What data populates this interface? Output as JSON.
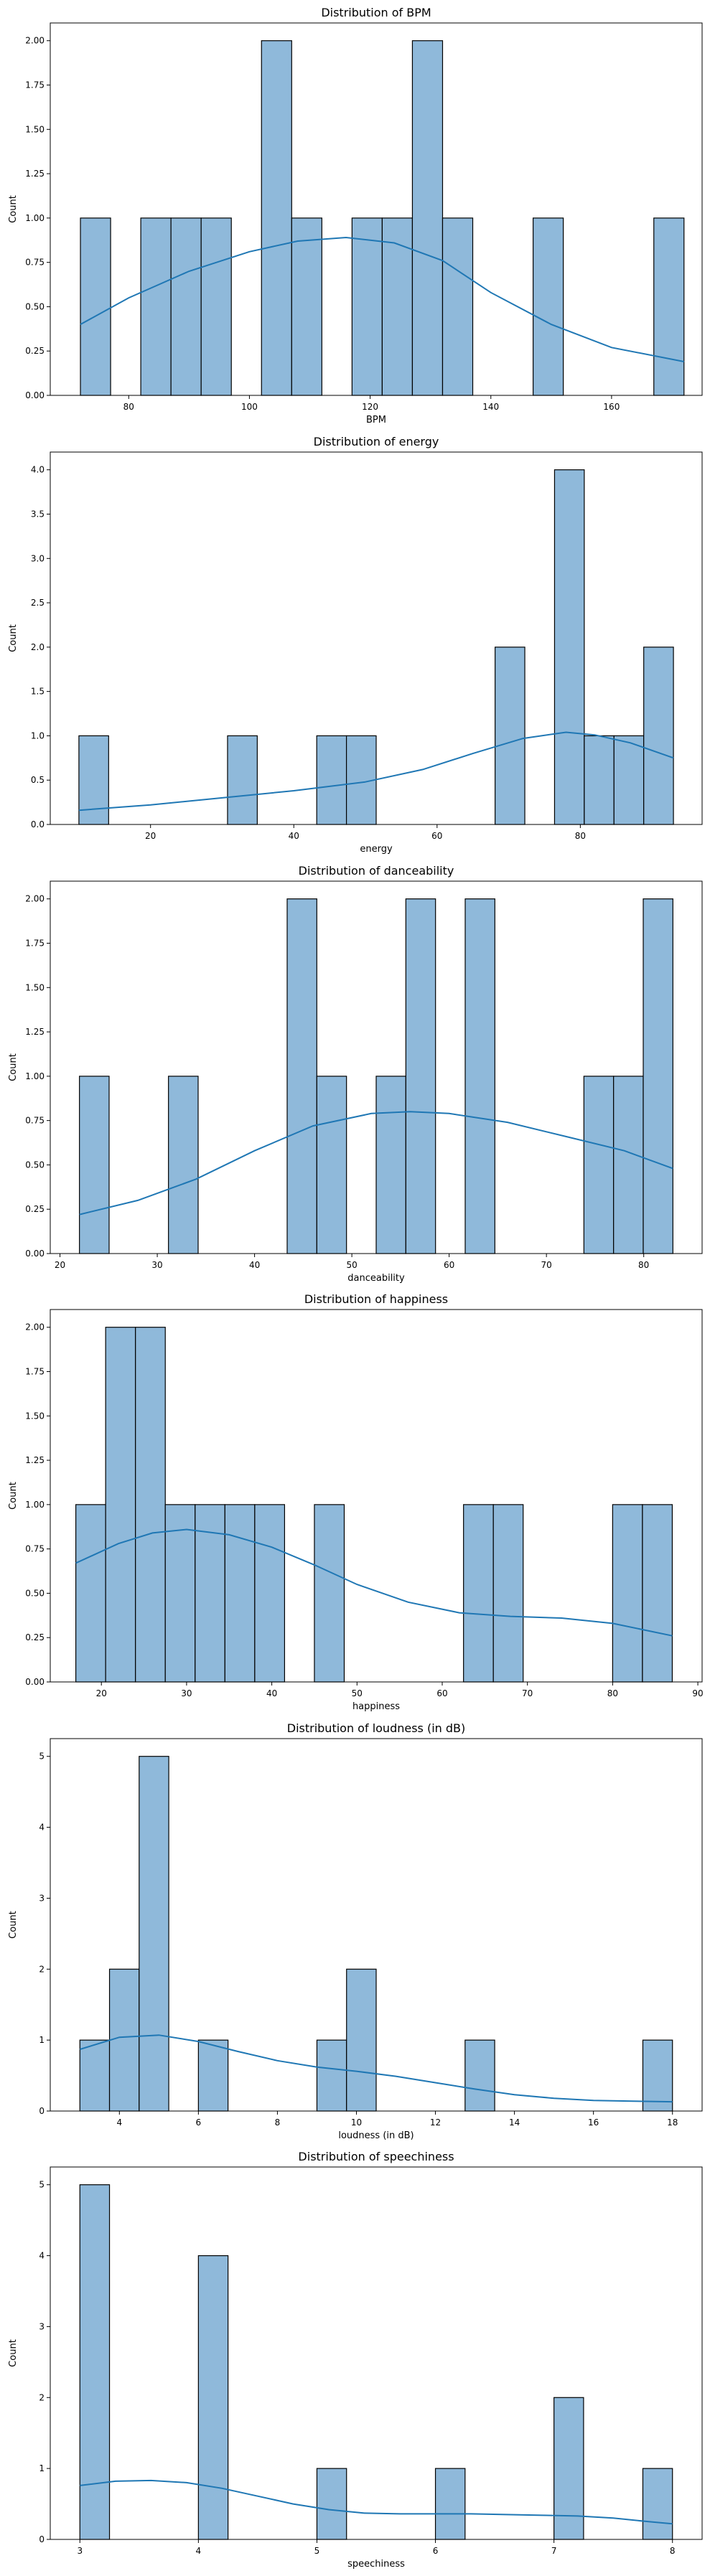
{
  "chart_data": [
    {
      "type": "bar",
      "title": "Distribution of BPM",
      "xlabel": "BPM",
      "ylabel": "Count",
      "xlim": [
        67,
        175
      ],
      "ylim": [
        0,
        2.1
      ],
      "xticks": [
        80,
        100,
        120,
        140,
        160
      ],
      "yticks": [
        0.0,
        0.25,
        0.5,
        0.75,
        1.0,
        1.25,
        1.5,
        1.75,
        2.0
      ],
      "ytick_decimals": 2,
      "bin_edges": [
        72,
        77,
        82,
        87,
        92,
        97,
        102,
        107,
        112,
        117,
        122,
        127,
        132,
        137,
        142,
        147,
        152,
        157,
        162,
        167,
        172
      ],
      "values": [
        1,
        0,
        1,
        1,
        1,
        0,
        2,
        1,
        0,
        1,
        1,
        2,
        1,
        0,
        0,
        1,
        0,
        0,
        0,
        1
      ],
      "kde": {
        "x": [
          72,
          80,
          90,
          100,
          108,
          116,
          124,
          132,
          140,
          150,
          160,
          172
        ],
        "y": [
          0.4,
          0.55,
          0.7,
          0.81,
          0.87,
          0.89,
          0.86,
          0.76,
          0.58,
          0.4,
          0.27,
          0.19
        ]
      },
      "legend": "none",
      "grid": false
    },
    {
      "type": "bar",
      "title": "Distribution of energy",
      "xlabel": "energy",
      "ylabel": "Count",
      "xlim": [
        6,
        97
      ],
      "ylim": [
        0,
        4.2
      ],
      "xticks": [
        20,
        40,
        60,
        80
      ],
      "yticks": [
        0.0,
        0.5,
        1.0,
        1.5,
        2.0,
        2.5,
        3.0,
        3.5,
        4.0
      ],
      "ytick_decimals": 1,
      "bin_edges": [
        10,
        14.15,
        18.3,
        22.45,
        26.6,
        30.75,
        34.9,
        39.05,
        43.2,
        47.35,
        51.5,
        55.65,
        59.8,
        63.95,
        68.1,
        72.25,
        76.4,
        80.55,
        84.7,
        88.85,
        93
      ],
      "values": [
        1,
        0,
        0,
        0,
        0,
        1,
        0,
        0,
        1,
        1,
        0,
        0,
        0,
        0,
        2,
        0,
        4,
        1,
        1,
        2
      ],
      "kde": {
        "x": [
          10,
          20,
          30,
          40,
          50,
          58,
          65,
          72,
          78,
          82,
          87,
          93
        ],
        "y": [
          0.16,
          0.22,
          0.3,
          0.38,
          0.48,
          0.62,
          0.8,
          0.97,
          1.04,
          1.01,
          0.92,
          0.75
        ]
      },
      "legend": "none",
      "grid": false
    },
    {
      "type": "bar",
      "title": "Distribution of danceability",
      "xlabel": "danceability",
      "ylabel": "Count",
      "xlim": [
        19,
        86
      ],
      "ylim": [
        0,
        2.1
      ],
      "xticks": [
        20,
        30,
        40,
        50,
        60,
        70,
        80
      ],
      "yticks": [
        0.0,
        0.25,
        0.5,
        0.75,
        1.0,
        1.25,
        1.5,
        1.75,
        2.0
      ],
      "ytick_decimals": 2,
      "bin_edges": [
        22,
        25.05,
        28.1,
        31.15,
        34.2,
        37.25,
        40.3,
        43.35,
        46.4,
        49.45,
        52.5,
        55.55,
        58.6,
        61.65,
        64.7,
        67.75,
        70.8,
        73.85,
        76.9,
        79.95,
        83
      ],
      "values": [
        1,
        0,
        0,
        1,
        0,
        0,
        0,
        2,
        1,
        0,
        1,
        2,
        0,
        2,
        0,
        0,
        0,
        1,
        1,
        2
      ],
      "kde": {
        "x": [
          22,
          28,
          34,
          40,
          46,
          52,
          56,
          60,
          66,
          72,
          78,
          83
        ],
        "y": [
          0.22,
          0.3,
          0.42,
          0.58,
          0.72,
          0.79,
          0.8,
          0.79,
          0.74,
          0.66,
          0.58,
          0.48
        ]
      },
      "legend": "none",
      "grid": false
    },
    {
      "type": "bar",
      "title": "Distribution of happiness",
      "xlabel": "happiness",
      "ylabel": "Count",
      "xlim": [
        14,
        90.5
      ],
      "ylim": [
        0,
        2.1
      ],
      "xticks": [
        20,
        30,
        40,
        50,
        60,
        70,
        80,
        90
      ],
      "yticks": [
        0.0,
        0.25,
        0.5,
        0.75,
        1.0,
        1.25,
        1.5,
        1.75,
        2.0
      ],
      "ytick_decimals": 2,
      "bin_edges": [
        17,
        20.5,
        24,
        27.5,
        31,
        34.5,
        38,
        41.5,
        45,
        48.5,
        52,
        55.5,
        59,
        62.5,
        66,
        69.5,
        73,
        76.5,
        80,
        83.5,
        87
      ],
      "values": [
        1,
        2,
        2,
        1,
        1,
        1,
        1,
        0,
        1,
        0,
        0,
        0,
        0,
        1,
        1,
        0,
        0,
        0,
        1,
        1
      ],
      "kde": {
        "x": [
          17,
          22,
          26,
          30,
          35,
          40,
          45,
          50,
          56,
          62,
          68,
          74,
          80,
          87
        ],
        "y": [
          0.67,
          0.78,
          0.84,
          0.86,
          0.83,
          0.76,
          0.66,
          0.55,
          0.45,
          0.39,
          0.37,
          0.36,
          0.33,
          0.26
        ]
      },
      "legend": "none",
      "grid": false
    },
    {
      "type": "bar",
      "title": "Distribution of loudness (in dB)",
      "xlabel": "loudness (in dB)",
      "ylabel": "Count",
      "xlim": [
        2.25,
        18.75
      ],
      "ylim": [
        0,
        5.25
      ],
      "xticks": [
        4,
        6,
        8,
        10,
        12,
        14,
        16,
        18
      ],
      "yticks": [
        0,
        1,
        2,
        3,
        4,
        5
      ],
      "ytick_decimals": 0,
      "bin_edges": [
        3,
        3.75,
        4.5,
        5.25,
        6,
        6.75,
        7.5,
        8.25,
        9,
        9.75,
        10.5,
        11.25,
        12,
        12.75,
        13.5,
        14.25,
        15,
        15.75,
        16.5,
        17.25,
        18
      ],
      "values": [
        1,
        2,
        5,
        0,
        1,
        0,
        0,
        0,
        1,
        2,
        0,
        0,
        0,
        1,
        0,
        0,
        0,
        0,
        0,
        1
      ],
      "kde": {
        "x": [
          3,
          4,
          5,
          6,
          7,
          8,
          9,
          10,
          11,
          12,
          13,
          14,
          15,
          16,
          17,
          18
        ],
        "y": [
          0.87,
          1.04,
          1.07,
          0.98,
          0.84,
          0.71,
          0.62,
          0.56,
          0.49,
          0.4,
          0.31,
          0.23,
          0.18,
          0.15,
          0.14,
          0.13
        ]
      },
      "legend": "none",
      "grid": false
    },
    {
      "type": "bar",
      "title": "Distribution of speechiness",
      "xlabel": "speechiness",
      "ylabel": "Count",
      "xlim": [
        2.75,
        8.25
      ],
      "ylim": [
        0,
        5.25
      ],
      "xticks": [
        3,
        4,
        5,
        6,
        7,
        8
      ],
      "yticks": [
        0,
        1,
        2,
        3,
        4,
        5
      ],
      "ytick_decimals": 0,
      "bin_edges": [
        3,
        3.25,
        3.5,
        3.75,
        4,
        4.25,
        4.5,
        4.75,
        5,
        5.25,
        5.5,
        5.75,
        6,
        6.25,
        6.5,
        6.75,
        7,
        7.25,
        7.5,
        7.75,
        8
      ],
      "values": [
        5,
        0,
        0,
        0,
        4,
        0,
        0,
        0,
        1,
        0,
        0,
        0,
        1,
        0,
        0,
        0,
        2,
        0,
        0,
        1
      ],
      "kde": {
        "x": [
          3,
          3.3,
          3.6,
          3.9,
          4.2,
          4.5,
          4.8,
          5.1,
          5.4,
          5.7,
          6,
          6.3,
          6.6,
          6.9,
          7.2,
          7.5,
          7.8,
          8
        ],
        "y": [
          0.76,
          0.82,
          0.83,
          0.8,
          0.72,
          0.61,
          0.5,
          0.42,
          0.37,
          0.36,
          0.36,
          0.36,
          0.35,
          0.34,
          0.33,
          0.3,
          0.25,
          0.22
        ]
      },
      "legend": "none",
      "grid": false
    }
  ],
  "colors": {
    "bar_fill": "#8fb9da",
    "bar_edge": "#000000",
    "kde_line": "#1f77b4",
    "axes": "#000000"
  }
}
